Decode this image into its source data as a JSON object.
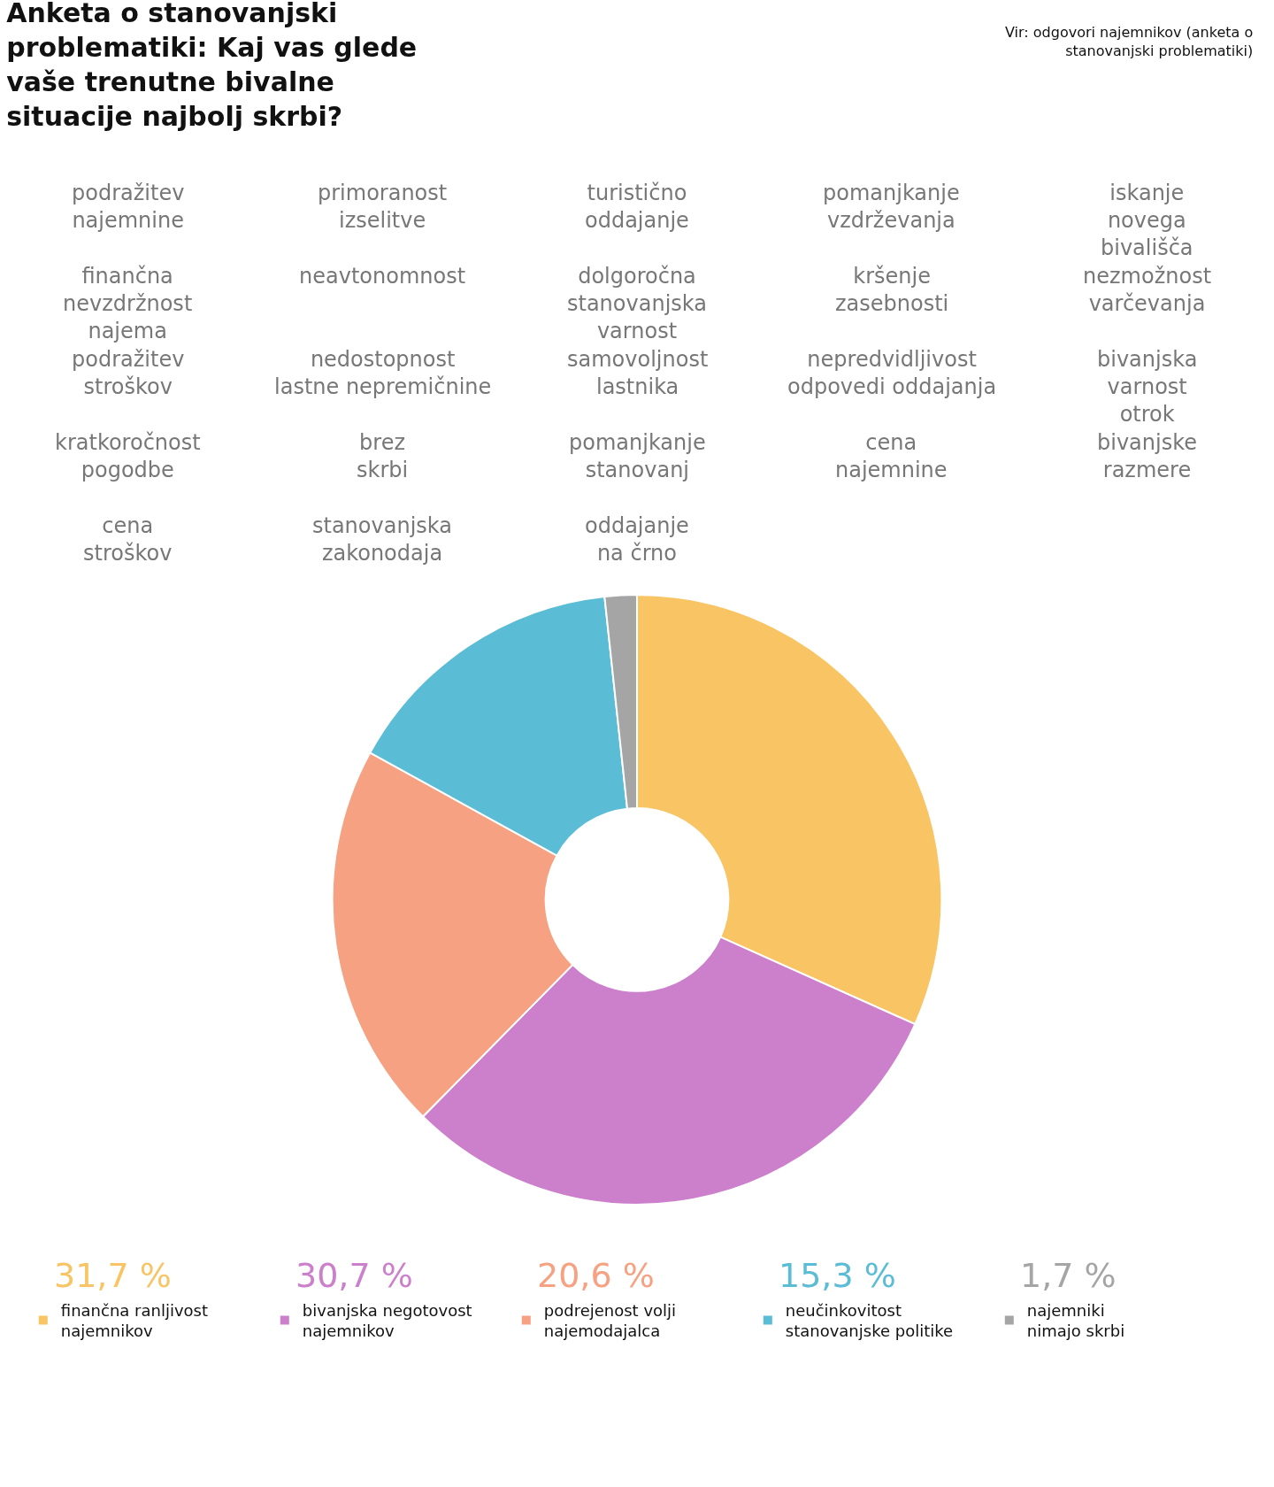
{
  "chart_data": {
    "type": "donut",
    "title": "Anketa o stanovanjski\nproblematiki: Kaj vas glede\nvaše trenutne bivalne\nsituacije najbolj skrbi?",
    "categories": [
      "finančna ranljivost\nnajemnikov",
      "bivanjska negotovost\nnajemnikov",
      "podrejenost volji\nnajemodajalca",
      "neučinkovitost\nstanovanjske politike",
      "najemniki\nnimajo skrbi"
    ],
    "values": [
      31.7,
      30.7,
      20.6,
      15.3,
      1.7
    ],
    "value_labels": [
      "31,7 %",
      "30,7 %",
      "20,6 %",
      "15,3 %",
      "1,7 %"
    ],
    "colors": [
      "#f8c464",
      "#cc7fcb",
      "#f6a182",
      "#5bbcd5",
      "#a5a5a5"
    ],
    "legend": "bottom",
    "annotations": [
      "Vir: odgovori najemnikov (anketa o\nstanovanjski problematiki)",
      "podražitev\nnajemnine",
      "primoranost\nizselitve",
      "turistično\noddajanje",
      "pomanjkanje\nvzdrževanja",
      "iskanje\nnovega\nbivališča",
      "finančna\nnevzdržnost\nnajema",
      "neavtonomnost",
      "dolgoročna\nstanovanjska\nvarnost",
      "kršenje\nzasebnosti",
      "nezmožnost\nvarčevanja",
      "podražitev\nstroškov",
      "nedostopnost\nlastne nepremičnine",
      "samovoljnost\nlastnika",
      "nepredvidljivost\nodpovedi oddajanja",
      "bivanjska\nvarnost\notrok",
      "kratkoročnost\npogodbe",
      "brez\nskrbi",
      "pomanjkanje\nstanovanj",
      "cena\nnajemnine",
      "bivanjske\nrazmere",
      "cena\nstroškov",
      "stanovanjska\nzakonodaja",
      "oddajanje\nna črno"
    ]
  }
}
